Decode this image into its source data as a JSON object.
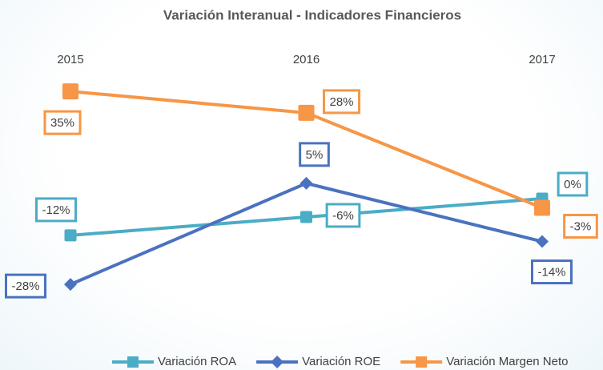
{
  "chart_data": {
    "type": "line",
    "title": "Variación Interanual - Indicadores Financieros",
    "categories": [
      "2015",
      "2016",
      "2017"
    ],
    "ylim": [
      -40,
      40
    ],
    "legend": "bottom",
    "series": [
      {
        "name": "Variación ROA",
        "color": "#4bacc6",
        "marker": "square",
        "values": [
          -12,
          -6,
          0
        ],
        "value_labels": [
          "-12%",
          "-6%",
          "0%"
        ]
      },
      {
        "name": "Variación ROE",
        "color": "#4a72bf",
        "marker": "diamond",
        "values": [
          -28,
          5,
          -14
        ],
        "value_labels": [
          "-28%",
          "5%",
          "-14%"
        ]
      },
      {
        "name": "Variación Margen Neto",
        "color": "#f79646",
        "marker": "square-large",
        "values": [
          35,
          28,
          -3
        ],
        "value_labels": [
          "35%",
          "28%",
          "-3%"
        ]
      }
    ]
  }
}
